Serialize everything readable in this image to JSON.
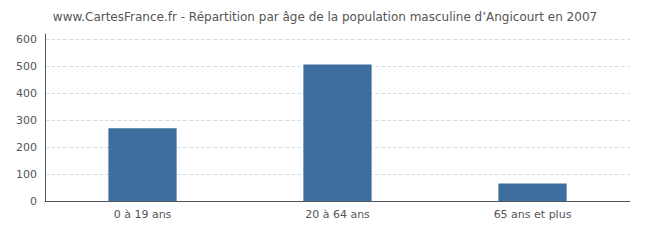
{
  "chart_data": {
    "type": "bar",
    "title": "www.CartesFrance.fr - Répartition par âge de la population masculine d’Angicourt en 2007",
    "categories": [
      "0 à 19 ans",
      "20 à 64 ans",
      "65 ans et plus"
    ],
    "values": [
      270,
      507,
      65
    ],
    "color": "#3d6f9e",
    "ylim": [
      0,
      620
    ],
    "yticks": [
      0,
      100,
      200,
      300,
      400,
      500,
      600
    ],
    "grid": true
  }
}
